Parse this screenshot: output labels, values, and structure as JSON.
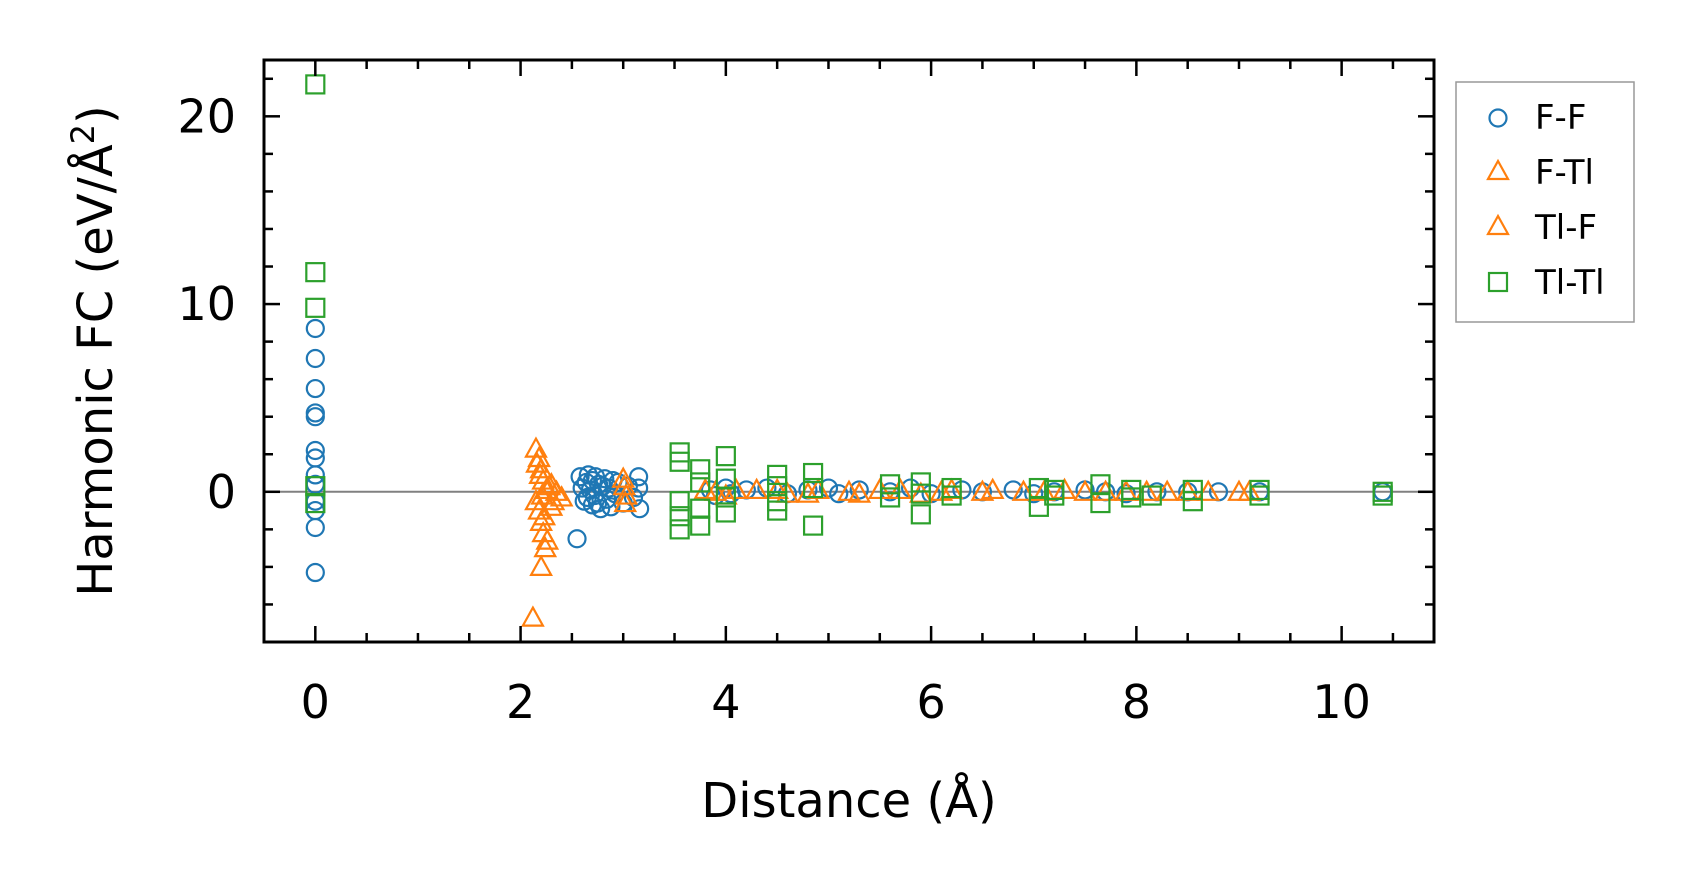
{
  "chart_data": {
    "type": "scatter",
    "title": "",
    "xlabel": "Distance (Å)",
    "ylabel_main": "Harmonic FC (eV/Å",
    "ylabel_sup": "2",
    "ylabel_close": ")",
    "xlim": [
      -0.5,
      10.9
    ],
    "ylim": [
      -8.0,
      23.0
    ],
    "xticks": [
      0,
      2,
      4,
      6,
      8,
      10
    ],
    "xtick_labels": [
      "0",
      "2",
      "4",
      "6",
      "8",
      "10"
    ],
    "xminor_step": 0.5,
    "yticks": [
      0,
      10,
      20
    ],
    "ytick_labels": [
      "0",
      "10",
      "20"
    ],
    "yminor_step": 2,
    "zero_line": 0,
    "legend_position": "outside-right",
    "series": [
      {
        "name": "F-F",
        "marker": "circle",
        "color": "#1f77b4",
        "points": [
          [
            0,
            8.7
          ],
          [
            0,
            7.1
          ],
          [
            0,
            5.5
          ],
          [
            0,
            4.2
          ],
          [
            0,
            4.0
          ],
          [
            0,
            2.2
          ],
          [
            0,
            1.8
          ],
          [
            0,
            0.9
          ],
          [
            0,
            0.4
          ],
          [
            0,
            -0.5
          ],
          [
            0,
            -1.0
          ],
          [
            0,
            -1.9
          ],
          [
            0,
            -4.3
          ],
          [
            2.55,
            -2.5
          ],
          [
            2.58,
            0.8
          ],
          [
            2.6,
            0.2
          ],
          [
            2.62,
            -0.5
          ],
          [
            2.64,
            0.5
          ],
          [
            2.65,
            -0.3
          ],
          [
            2.66,
            0.9
          ],
          [
            2.68,
            0.1
          ],
          [
            2.7,
            -0.7
          ],
          [
            2.7,
            0.6
          ],
          [
            2.72,
            -0.2
          ],
          [
            2.73,
            0.8
          ],
          [
            2.75,
            -0.6
          ],
          [
            2.76,
            0.4
          ],
          [
            2.78,
            -0.9
          ],
          [
            2.8,
            0.3
          ],
          [
            2.82,
            0.7
          ],
          [
            2.84,
            -0.4
          ],
          [
            2.86,
            0.2
          ],
          [
            2.88,
            -0.8
          ],
          [
            2.9,
            0.6
          ],
          [
            2.92,
            -0.1
          ],
          [
            2.95,
            0.5
          ],
          [
            3.0,
            -0.6
          ],
          [
            3.05,
            0.3
          ],
          [
            3.1,
            -0.3
          ],
          [
            3.15,
            0.8
          ],
          [
            3.15,
            0.2
          ],
          [
            3.16,
            -0.9
          ],
          [
            3.85,
            0.1
          ],
          [
            3.9,
            -0.2
          ],
          [
            4.0,
            0.2
          ],
          [
            4.05,
            -0.1
          ],
          [
            4.2,
            0.1
          ],
          [
            4.4,
            0.2
          ],
          [
            4.6,
            -0.1
          ],
          [
            4.8,
            0.1
          ],
          [
            5.0,
            0.2
          ],
          [
            5.1,
            -0.1
          ],
          [
            5.3,
            0.1
          ],
          [
            5.6,
            0.0
          ],
          [
            5.8,
            0.2
          ],
          [
            6.0,
            -0.1
          ],
          [
            6.3,
            0.1
          ],
          [
            6.5,
            0.0
          ],
          [
            6.8,
            0.1
          ],
          [
            7.0,
            -0.1
          ],
          [
            7.2,
            0.0
          ],
          [
            7.5,
            0.1
          ],
          [
            7.7,
            0.0
          ],
          [
            7.9,
            -0.1
          ],
          [
            8.2,
            0.0
          ],
          [
            8.5,
            0.0
          ],
          [
            8.8,
            0.0
          ],
          [
            9.2,
            0.0
          ],
          [
            10.4,
            0.0
          ]
        ]
      },
      {
        "name": "F-Tl",
        "marker": "triangle",
        "color": "#ff7f0e",
        "points": [
          [
            2.15,
            2.3
          ],
          [
            2.18,
            1.8
          ],
          [
            2.2,
            1.2
          ],
          [
            2.22,
            0.6
          ],
          [
            2.25,
            0.1
          ],
          [
            2.15,
            -0.5
          ],
          [
            2.18,
            -1.0
          ],
          [
            2.2,
            -1.6
          ],
          [
            2.22,
            -2.2
          ],
          [
            2.24,
            -3.0
          ],
          [
            2.2,
            -4.0
          ],
          [
            2.12,
            -6.7
          ],
          [
            2.3,
            0.4
          ],
          [
            2.3,
            -0.8
          ],
          [
            2.35,
            0.0
          ],
          [
            2.4,
            -0.3
          ],
          [
            3.0,
            0.7
          ],
          [
            3.02,
            -0.6
          ],
          [
            3.8,
            0.1
          ],
          [
            4.0,
            -0.2
          ],
          [
            4.3,
            0.1
          ],
          [
            4.6,
            -0.1
          ],
          [
            4.9,
            0.1
          ],
          [
            5.2,
            0.0
          ],
          [
            5.5,
            0.1
          ],
          [
            5.9,
            -0.1
          ],
          [
            6.2,
            0.1
          ],
          [
            6.5,
            0.0
          ],
          [
            6.9,
            0.0
          ],
          [
            7.3,
            0.1
          ],
          [
            7.7,
            0.0
          ],
          [
            8.1,
            0.0
          ],
          [
            8.5,
            0.0
          ],
          [
            9.0,
            0.0
          ]
        ]
      },
      {
        "name": "Tl-F",
        "marker": "triangle",
        "color": "#ff7f0e",
        "points": [
          [
            2.16,
            1.5
          ],
          [
            2.19,
            0.9
          ],
          [
            2.21,
            -0.2
          ],
          [
            2.23,
            -1.3
          ],
          [
            2.26,
            -2.6
          ],
          [
            2.28,
            0.3
          ],
          [
            2.32,
            -0.5
          ],
          [
            3.01,
            0.3
          ],
          [
            3.03,
            -0.2
          ],
          [
            3.9,
            0.0
          ],
          [
            4.1,
            0.1
          ],
          [
            4.5,
            0.1
          ],
          [
            4.8,
            -0.1
          ],
          [
            5.3,
            -0.1
          ],
          [
            5.7,
            0.1
          ],
          [
            6.1,
            0.0
          ],
          [
            6.6,
            0.1
          ],
          [
            7.1,
            0.0
          ],
          [
            7.5,
            0.0
          ],
          [
            7.9,
            0.0
          ],
          [
            8.3,
            0.0
          ],
          [
            8.7,
            0.0
          ],
          [
            9.1,
            0.0
          ]
        ]
      },
      {
        "name": "Tl-Tl",
        "marker": "square",
        "color": "#2ca02c",
        "points": [
          [
            0,
            21.7
          ],
          [
            0,
            11.7
          ],
          [
            0,
            9.8
          ],
          [
            0,
            0.3
          ],
          [
            0,
            -0.6
          ],
          [
            3.55,
            2.1
          ],
          [
            3.55,
            1.6
          ],
          [
            3.55,
            -0.5
          ],
          [
            3.55,
            -1.3
          ],
          [
            3.55,
            -2.0
          ],
          [
            3.75,
            1.2
          ],
          [
            3.75,
            0.5
          ],
          [
            3.75,
            -0.9
          ],
          [
            3.75,
            -1.8
          ],
          [
            4.0,
            1.9
          ],
          [
            4.0,
            0.7
          ],
          [
            4.0,
            -0.3
          ],
          [
            4.0,
            -1.1
          ],
          [
            4.5,
            0.9
          ],
          [
            4.5,
            0.3
          ],
          [
            4.5,
            -0.5
          ],
          [
            4.5,
            -1.0
          ],
          [
            4.85,
            1.0
          ],
          [
            4.85,
            0.2
          ],
          [
            4.85,
            -1.8
          ],
          [
            5.6,
            0.4
          ],
          [
            5.6,
            -0.3
          ],
          [
            5.9,
            0.5
          ],
          [
            5.9,
            -0.1
          ],
          [
            5.9,
            -1.2
          ],
          [
            6.2,
            0.2
          ],
          [
            6.2,
            -0.2
          ],
          [
            7.05,
            0.2
          ],
          [
            7.05,
            -0.8
          ],
          [
            7.2,
            0.1
          ],
          [
            7.2,
            -0.2
          ],
          [
            7.65,
            0.4
          ],
          [
            7.65,
            -0.6
          ],
          [
            7.95,
            0.1
          ],
          [
            7.95,
            -0.3
          ],
          [
            8.15,
            -0.2
          ],
          [
            8.55,
            0.1
          ],
          [
            8.55,
            -0.5
          ],
          [
            9.2,
            0.1
          ],
          [
            9.2,
            -0.2
          ],
          [
            10.4,
            0.0
          ],
          [
            10.4,
            -0.2
          ]
        ]
      }
    ]
  }
}
